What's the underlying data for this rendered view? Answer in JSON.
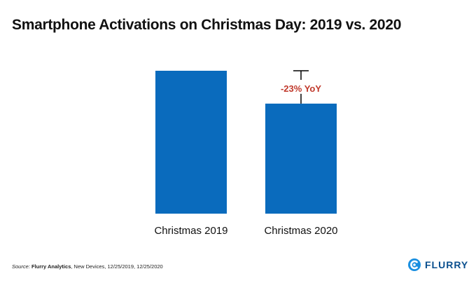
{
  "colors": {
    "bar": "#0a6bbd",
    "annotation": "#c0392b",
    "text": "#111111",
    "brand": "#0a4f8e"
  },
  "chart_data": {
    "type": "bar",
    "title": "Smartphone Activations on Christmas Day: 2019 vs. 2020",
    "categories": [
      "Christmas 2019",
      "Christmas 2020"
    ],
    "values": [
      100,
      77
    ],
    "value_note": "relative index, Christmas 2019 = 100 (no value axis printed)",
    "annotation": "-23% YoY",
    "xlabel": "",
    "ylabel": "",
    "ylim": [
      0,
      100
    ],
    "grid": false,
    "legend": "none"
  },
  "footer": {
    "source_label": "Source:",
    "source_brand": "Flurry Analytics",
    "source_rest": ", New Devices, 12/25/2019, 12/25/2020"
  },
  "logo": {
    "text": "FLURRY",
    "icon": "flurry-logo-icon"
  }
}
